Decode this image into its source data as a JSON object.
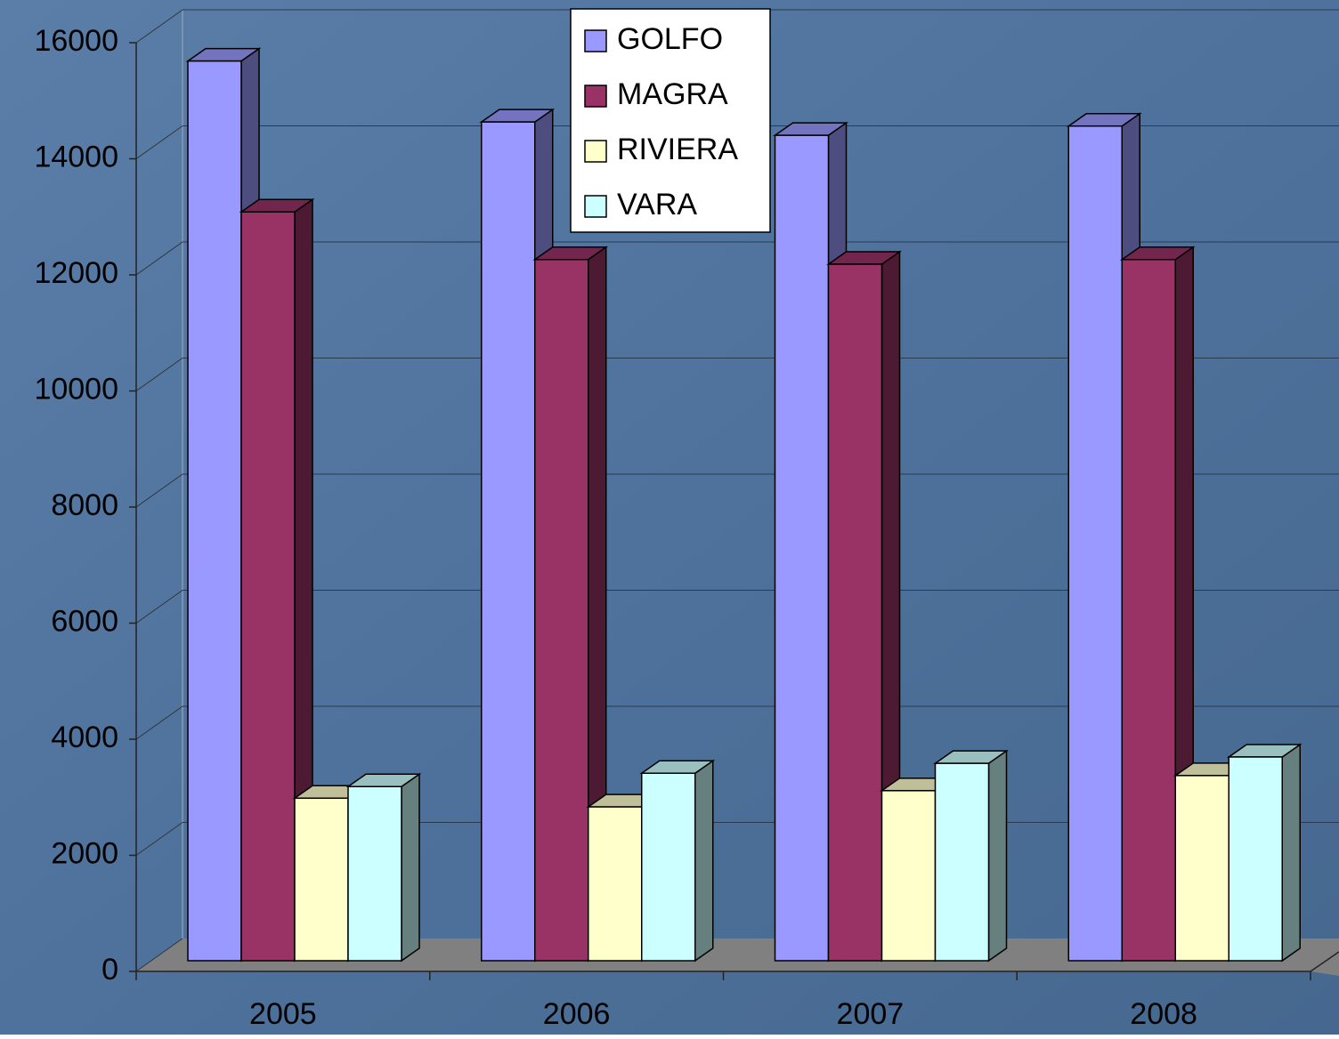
{
  "chart_data": {
    "type": "bar3d",
    "categories": [
      "2005",
      "2006",
      "2007",
      "2008"
    ],
    "series": [
      {
        "name": "GOLFO",
        "color": "#9999ff",
        "values": [
          15500,
          14450,
          14220,
          14380
        ]
      },
      {
        "name": "MAGRA",
        "color": "#993366",
        "values": [
          12900,
          12080,
          12000,
          12080
        ]
      },
      {
        "name": "RIVIERA",
        "color": "#ffffcc",
        "values": [
          2800,
          2650,
          2930,
          3190
        ]
      },
      {
        "name": "VARA",
        "color": "#ccffff",
        "values": [
          3000,
          3230,
          3400,
          3510
        ]
      }
    ],
    "ylim": [
      0,
      16000
    ],
    "yticks": [
      0,
      2000,
      4000,
      6000,
      8000,
      10000,
      12000,
      14000,
      16000
    ],
    "grid": true,
    "legend": "top"
  }
}
